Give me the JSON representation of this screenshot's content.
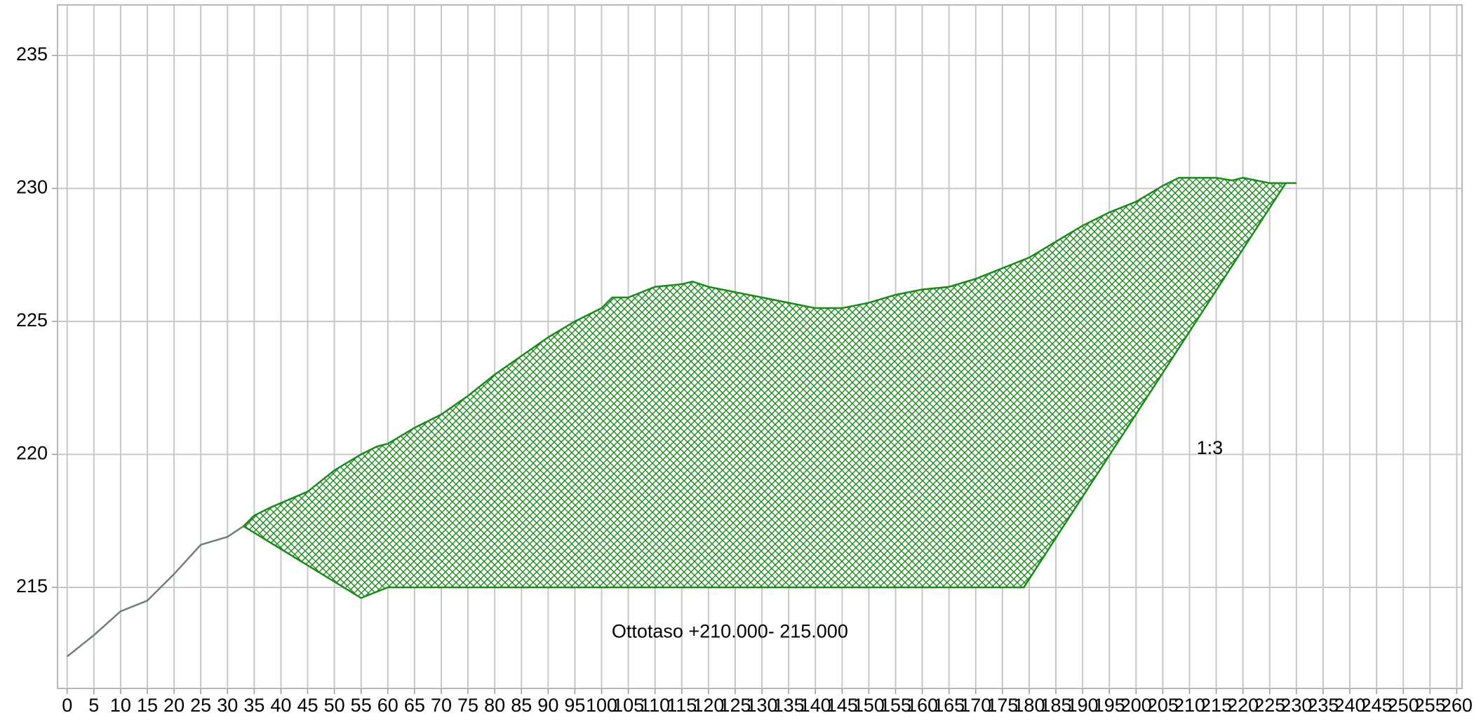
{
  "chart_data": {
    "type": "line",
    "xlim": [
      -1.8,
      261
    ],
    "ylim": [
      211.2,
      236.9
    ],
    "xticks": [
      0,
      5,
      10,
      15,
      20,
      25,
      30,
      35,
      40,
      45,
      50,
      55,
      60,
      65,
      70,
      75,
      80,
      85,
      90,
      95,
      100,
      105,
      110,
      115,
      120,
      125,
      130,
      135,
      140,
      145,
      150,
      155,
      160,
      165,
      170,
      175,
      180,
      185,
      190,
      195,
      200,
      205,
      210,
      215,
      220,
      225,
      230,
      235,
      240,
      245,
      250,
      255,
      260
    ],
    "yticks": [
      215,
      220,
      225,
      230,
      235
    ],
    "grid": true,
    "series": [
      {
        "color": "#708070",
        "x": [
          0,
          5,
          10,
          15,
          20,
          25,
          30,
          33
        ],
        "values": [
          212.4,
          213.2,
          214.1,
          214.5,
          215.5,
          216.6,
          216.9,
          217.3
        ]
      },
      {
        "color": "#1a8a1a",
        "x": [
          33,
          35,
          38,
          45,
          50,
          55,
          58,
          60,
          65,
          70,
          75,
          80,
          85,
          90,
          95,
          100,
          102,
          105,
          110,
          115,
          117,
          120,
          125,
          130,
          135,
          140,
          145,
          150,
          155,
          160,
          165,
          170,
          175,
          180,
          185,
          190,
          195,
          200,
          205,
          208,
          215,
          218,
          220,
          225,
          228,
          230
        ],
        "values": [
          217.3,
          217.7,
          218.0,
          218.6,
          219.4,
          220.0,
          220.3,
          220.4,
          221.0,
          221.5,
          222.2,
          223.0,
          223.7,
          224.4,
          225.0,
          225.5,
          225.9,
          225.9,
          226.3,
          226.4,
          226.5,
          226.3,
          226.1,
          225.9,
          225.7,
          225.5,
          225.5,
          225.7,
          226.0,
          226.2,
          226.3,
          226.6,
          227.0,
          227.4,
          228.0,
          228.6,
          229.1,
          229.5,
          230.1,
          230.4,
          230.4,
          230.3,
          230.4,
          230.2,
          230.2,
          230.2
        ]
      },
      {
        "color": "#1a8a1a",
        "x": [
          33,
          55,
          60,
          179,
          228
        ],
        "values": [
          217.3,
          214.6,
          215.0,
          215.0,
          230.2
        ]
      }
    ],
    "annotations": [
      "Ottotaso +210.000- 215.000",
      "1:3"
    ]
  }
}
